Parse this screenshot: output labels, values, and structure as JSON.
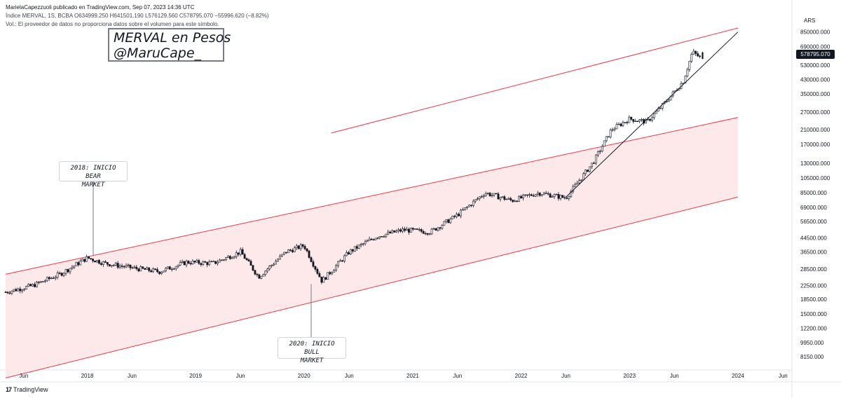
{
  "header": {
    "line1": "Índice MERVAL, 1S, BCBA  O634999.250  H641501.190  L576129.560  C578795.070  −55996.620 (−8.82%)",
    "line2": "Vol.: El proveedor de datos no proporciona datos sobre el volumen para este símbolo.",
    "publisher": "MarielaCapezzuoli publicado en TradingView.com, Sep 07, 2023 14:36 UTC"
  },
  "title_box": {
    "line1": "MERVAL en Pesos",
    "line2": "@MaruCape_"
  },
  "callouts": {
    "bear": {
      "line1": "2018: INICIO BEAR",
      "line2": "MARKET"
    },
    "bull": {
      "line1": "2020: INICIO BULL",
      "line2": "MARKET"
    }
  },
  "price_axis": {
    "currency": "ARS",
    "last_price": "578795.070",
    "ticks": [
      "850000.000",
      "690000.000",
      "530000.000",
      "430000.000",
      "350000.000",
      "270000.000",
      "210000.000",
      "170000.000",
      "130000.000",
      "105000.000",
      "85000.000",
      "69000.000",
      "56500.000",
      "44500.000",
      "36500.000",
      "28500.000",
      "22500.000",
      "18500.000",
      "15000.000",
      "12200.000",
      "9950.000",
      "8150.000"
    ]
  },
  "time_axis": {
    "ticks": [
      "Jun",
      "2018",
      "Jun",
      "2019",
      "Jun",
      "2020",
      "Jun",
      "2021",
      "Jun",
      "2022",
      "Jun",
      "2023",
      "Jun",
      "2024",
      "Jun"
    ]
  },
  "footer": {
    "brand": "TradingView"
  },
  "colors": {
    "up": "#131722",
    "down": "#131722",
    "channel_line": "#f23645",
    "channel_fill": "#fde8ea",
    "trendline": "#131722"
  },
  "chart_data": {
    "type": "candlestick",
    "title": "MERVAL en Pesos",
    "scale": "log",
    "grid": false,
    "x_range": [
      "2017-04",
      "2024-07"
    ],
    "y_range": [
      7000,
      900000
    ],
    "series": [
      {
        "values_desc": "weekly close approximation",
        "x": [
          "2017-04",
          "2017-07",
          "2017-10",
          "2018-01",
          "2018-03",
          "2018-06",
          "2018-09",
          "2018-12",
          "2019-03",
          "2019-06",
          "2019-08",
          "2019-11",
          "2020-01",
          "2020-03",
          "2020-06",
          "2020-09",
          "2020-12",
          "2021-03",
          "2021-06",
          "2021-09",
          "2021-12",
          "2022-03",
          "2022-06",
          "2022-09",
          "2022-11",
          "2023-01",
          "2023-03",
          "2023-05",
          "2023-07",
          "2023-08",
          "2023-09"
        ],
        "y": [
          20500,
          22500,
          26500,
          33500,
          31000,
          29000,
          27500,
          31500,
          31000,
          36500,
          25500,
          36500,
          40000,
          24000,
          36500,
          45500,
          50000,
          48500,
          62000,
          85000,
          76000,
          85000,
          79000,
          132000,
          210000,
          245000,
          235000,
          310000,
          420000,
          640000,
          578795
        ]
      }
    ],
    "channels": [
      {
        "name": "main_channel",
        "upper": [
          [
            "2017-04",
            26500
          ],
          [
            "2024-01",
            250000
          ]
        ],
        "lower": [
          [
            "2017-04",
            6000
          ],
          [
            "2024-01",
            80000
          ]
        ]
      },
      {
        "name": "upper_channel",
        "line": [
          [
            "2020-04",
            200000
          ],
          [
            "2024-01",
            900000
          ]
        ]
      }
    ],
    "trendline": [
      [
        "2022-06",
        80000
      ],
      [
        "2024-01",
        850000
      ]
    ]
  }
}
